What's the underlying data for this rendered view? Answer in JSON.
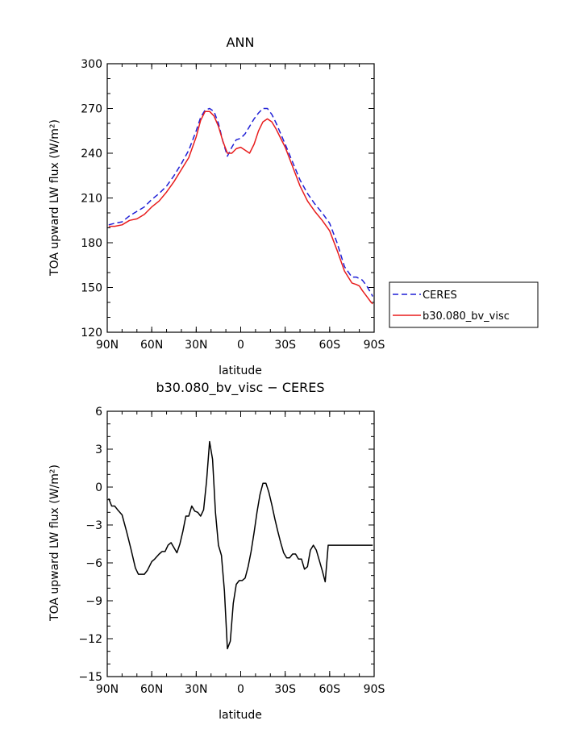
{
  "chart_data": [
    {
      "type": "line",
      "title": "ANN",
      "xlabel": "latitude",
      "ylabel": "TOA upward LW flux (W/m²)",
      "xlim": [
        90,
        -90
      ],
      "ylim": [
        120,
        300
      ],
      "xticks": [
        {
          "value": 90,
          "label": "90N"
        },
        {
          "value": 60,
          "label": "60N"
        },
        {
          "value": 30,
          "label": "30N"
        },
        {
          "value": 0,
          "label": "0"
        },
        {
          "value": -30,
          "label": "30S"
        },
        {
          "value": -60,
          "label": "60S"
        },
        {
          "value": -90,
          "label": "90S"
        }
      ],
      "yticks": [
        120,
        150,
        180,
        210,
        240,
        270,
        300
      ],
      "legend_position": "right",
      "series": [
        {
          "name": "CERES",
          "color": "#1f1fd6",
          "dash": "dashed",
          "x": [
            89,
            85,
            80,
            75,
            70,
            65,
            60,
            55,
            50,
            45,
            40,
            35,
            30,
            27,
            24,
            21,
            18,
            15,
            12,
            9,
            6,
            3,
            0,
            -3,
            -6,
            -9,
            -12,
            -15,
            -18,
            -21,
            -24,
            -27,
            -30,
            -35,
            -40,
            -45,
            -50,
            -55,
            -60,
            -65,
            -70,
            -75,
            -78,
            -80,
            -82,
            -85,
            -88,
            -89
          ],
          "y": [
            192,
            193,
            194,
            198,
            201,
            204,
            209,
            213,
            218,
            225,
            233,
            242,
            255,
            264,
            269,
            270,
            268,
            260,
            248,
            238,
            244,
            249,
            250,
            253,
            258,
            263,
            267,
            270,
            270,
            266,
            260,
            253,
            246,
            234,
            222,
            213,
            206,
            200,
            193,
            180,
            164,
            157,
            157,
            156,
            155,
            151,
            146,
            144
          ]
        },
        {
          "name": "b30.080_bv_visc",
          "color": "#e81c1c",
          "dash": "solid",
          "x": [
            89,
            85,
            80,
            75,
            70,
            65,
            60,
            55,
            50,
            45,
            40,
            35,
            30,
            27,
            24,
            21,
            18,
            15,
            12,
            9,
            6,
            3,
            0,
            -3,
            -6,
            -9,
            -12,
            -15,
            -18,
            -21,
            -24,
            -27,
            -30,
            -35,
            -40,
            -45,
            -50,
            -55,
            -60,
            -65,
            -70,
            -75,
            -78,
            -80,
            -82,
            -85,
            -88,
            -89
          ],
          "y": [
            191,
            191,
            192,
            195,
            196,
            199,
            204,
            208,
            214,
            221,
            229,
            237,
            251,
            262,
            268,
            268,
            265,
            258,
            248,
            240,
            240,
            243,
            244,
            242,
            240,
            246,
            255,
            261,
            263,
            261,
            256,
            250,
            244,
            231,
            218,
            208,
            201,
            195,
            188,
            175,
            161,
            153,
            152,
            151,
            148,
            144,
            140,
            139
          ]
        }
      ]
    },
    {
      "type": "line",
      "title": "b30.080_bv_visc − CERES",
      "xlabel": "latitude",
      "ylabel": "TOA upward LW flux (W/m²)",
      "xlim": [
        90,
        -90
      ],
      "ylim": [
        -15,
        6
      ],
      "xticks": [
        {
          "value": 90,
          "label": "90N"
        },
        {
          "value": 60,
          "label": "60N"
        },
        {
          "value": 30,
          "label": "30N"
        },
        {
          "value": 0,
          "label": "0"
        },
        {
          "value": -30,
          "label": "30S"
        },
        {
          "value": -60,
          "label": "60S"
        },
        {
          "value": -90,
          "label": "90S"
        }
      ],
      "yticks": [
        -15,
        -12,
        -9,
        -6,
        -3,
        0,
        3,
        6
      ],
      "series": [
        {
          "color": "#000000",
          "dash": "solid",
          "x": [
            89,
            87,
            85,
            83,
            80,
            77,
            74,
            71,
            69,
            67,
            65,
            63,
            60,
            58,
            55,
            53,
            51,
            49,
            47,
            45,
            43,
            41,
            39,
            37,
            35,
            33,
            31,
            29,
            27,
            25,
            23,
            21,
            19,
            17,
            15,
            13,
            11,
            9,
            7,
            5,
            3,
            1,
            -1,
            -3,
            -5,
            -7,
            -9,
            -11,
            -13,
            -15,
            -17,
            -19,
            -21,
            -23,
            -25,
            -27,
            -29,
            -31,
            -33,
            -35,
            -37,
            -39,
            -41,
            -43,
            -45,
            -47,
            -49,
            -51,
            -53,
            -55,
            -57,
            -59,
            -61,
            -63,
            -65,
            -67,
            -69,
            -71,
            -73,
            -75,
            -77,
            -79,
            -81,
            -83,
            -85,
            -87,
            -89
          ],
          "y": [
            -0.9,
            -1.5,
            -1.5,
            -1.8,
            -2.2,
            -3.5,
            -4.9,
            -6.4,
            -6.9,
            -6.9,
            -6.9,
            -6.6,
            -5.9,
            -5.7,
            -5.3,
            -5.1,
            -5.1,
            -4.6,
            -4.4,
            -4.8,
            -5.2,
            -4.5,
            -3.5,
            -2.3,
            -2.3,
            -1.5,
            -1.9,
            -2.0,
            -2.3,
            -1.8,
            0.5,
            3.6,
            2.2,
            -2.0,
            -4.6,
            -5.4,
            -8.2,
            -12.8,
            -12.2,
            -9.2,
            -7.7,
            -7.4,
            -7.4,
            -7.2,
            -6.3,
            -5.1,
            -3.6,
            -2.0,
            -0.6,
            0.3,
            0.3,
            -0.4,
            -1.4,
            -2.5,
            -3.5,
            -4.4,
            -5.2,
            -5.6,
            -5.6,
            -5.3,
            -5.3,
            -5.7,
            -5.7,
            -6.5,
            -6.3,
            -5.0,
            -4.6,
            -5.0,
            -5.8,
            -6.6,
            -7.5,
            -4.6,
            -4.6,
            -4.6,
            -4.6,
            -4.6,
            -4.6,
            -4.6,
            -4.6,
            -4.6,
            -4.6,
            -4.6,
            -4.6,
            -4.6,
            -4.6,
            -4.6,
            -4.6
          ]
        }
      ]
    }
  ]
}
